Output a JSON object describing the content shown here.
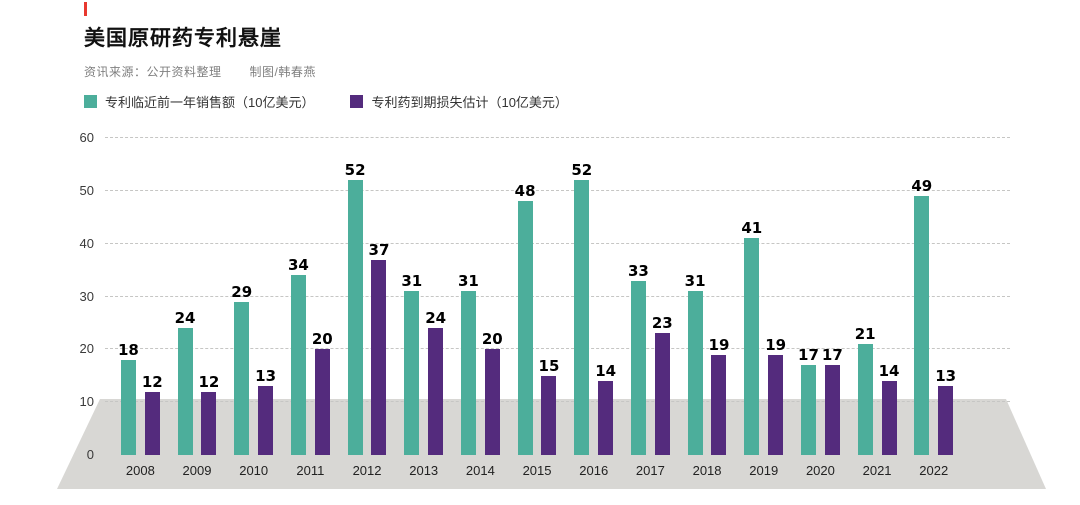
{
  "page": {
    "title": "美国原研药专利悬崖",
    "source": "资讯来源：公开资料整理",
    "credit": "制图/韩春燕",
    "accent_color": "#e8382f",
    "platform_color": "#d8d7d4"
  },
  "legend": [
    {
      "label": "专利临近前一年销售额（10亿美元）",
      "color": "#4cae9b"
    },
    {
      "label": "专利药到期损失估计（10亿美元）",
      "color": "#542b7d"
    }
  ],
  "chart_data": {
    "type": "bar",
    "title": "美国原研药专利悬崖",
    "categories": [
      "2008",
      "2009",
      "2010",
      "2011",
      "2012",
      "2013",
      "2014",
      "2015",
      "2016",
      "2017",
      "2018",
      "2019",
      "2020",
      "2021",
      "2022"
    ],
    "series": [
      {
        "name": "专利临近前一年销售额（10亿美元）",
        "color": "#4cae9b",
        "values": [
          18,
          24,
          29,
          34,
          52,
          31,
          31,
          48,
          52,
          33,
          31,
          41,
          17,
          21,
          49
        ]
      },
      {
        "name": "专利药到期损失估计（10亿美元）",
        "color": "#542b7d",
        "values": [
          12,
          12,
          13,
          20,
          37,
          24,
          20,
          15,
          14,
          23,
          19,
          19,
          17,
          14,
          13
        ]
      }
    ],
    "xlabel": "",
    "ylabel": "",
    "ylim": [
      0,
      60
    ],
    "yticks": [
      0,
      10,
      20,
      30,
      40,
      50,
      60
    ],
    "grid": "dashed-horizontal",
    "legend_position": "top-left"
  }
}
